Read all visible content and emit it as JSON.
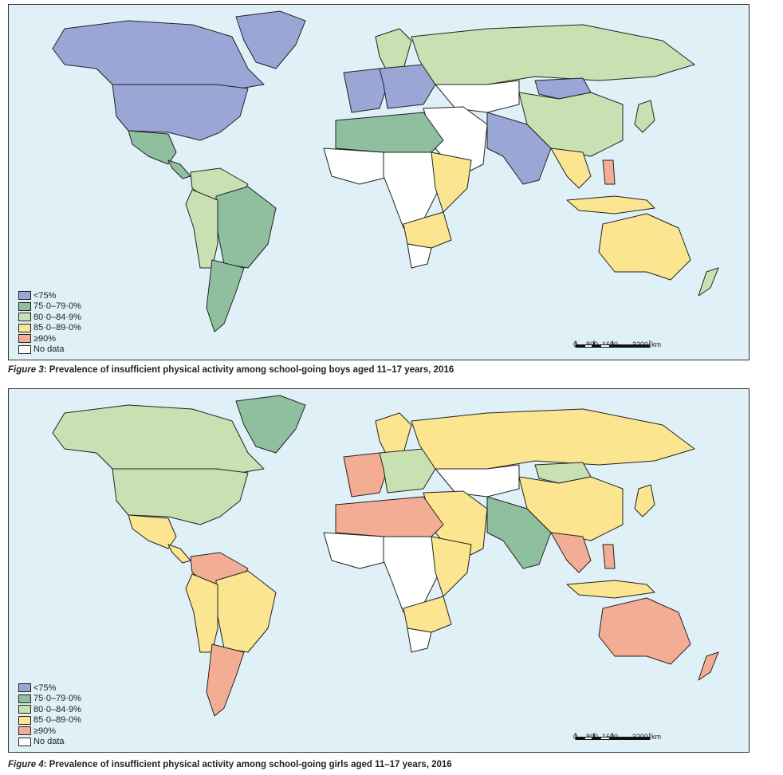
{
  "legend": {
    "items": [
      {
        "label": "<75%",
        "color": "#9aa6d6"
      },
      {
        "label": "75·0–79·0%",
        "color": "#8fbf9f"
      },
      {
        "label": "80·0–84·9%",
        "color": "#c9e0b2"
      },
      {
        "label": "85·0–89·0%",
        "color": "#fbe590"
      },
      {
        "label": "≥90%",
        "color": "#f4ad95"
      },
      {
        "label": "No data",
        "color": "#ffffff"
      }
    ]
  },
  "scale_bar": {
    "ticks": [
      "0",
      "800",
      "1600",
      "3200"
    ],
    "unit": "km"
  },
  "figures": [
    {
      "label": "Figure 3",
      "caption": ": Prevalence of insufficient physical activity among school-going boys aged 11–17 years, 2016",
      "regions": {
        "canada": 0,
        "usa": 0,
        "greenland": 0,
        "mexico": 1,
        "central_america": 1,
        "south_america_north": 2,
        "brazil": 1,
        "andes": 2,
        "southern_cone": 1,
        "western_europe": 0,
        "eastern_europe": 0,
        "scandinavia": 2,
        "russia": 2,
        "north_africa": 1,
        "west_africa": 5,
        "central_africa": 5,
        "east_africa": 3,
        "southern_africa": 3,
        "south_africa": 5,
        "middle_east": 5,
        "central_asia": 5,
        "south_asia": 0,
        "mongolia": 0,
        "china": 2,
        "southeast_asia": 3,
        "indonesia": 3,
        "japan": 2,
        "philippines": 4,
        "australia": 3,
        "new_zealand": 2
      }
    },
    {
      "label": "Figure 4",
      "caption": ": Prevalence of insufficient physical activity among school-going girls aged 11–17 years, 2016",
      "regions": {
        "canada": 2,
        "usa": 2,
        "greenland": 1,
        "mexico": 3,
        "central_america": 3,
        "south_america_north": 4,
        "brazil": 3,
        "andes": 3,
        "southern_cone": 4,
        "western_europe": 4,
        "eastern_europe": 2,
        "scandinavia": 3,
        "russia": 3,
        "north_africa": 4,
        "west_africa": 5,
        "central_africa": 5,
        "east_africa": 3,
        "southern_africa": 3,
        "south_africa": 5,
        "middle_east": 3,
        "central_asia": 5,
        "south_asia": 1,
        "mongolia": 2,
        "china": 3,
        "southeast_asia": 4,
        "indonesia": 3,
        "japan": 3,
        "philippines": 4,
        "australia": 4,
        "new_zealand": 4
      }
    }
  ]
}
